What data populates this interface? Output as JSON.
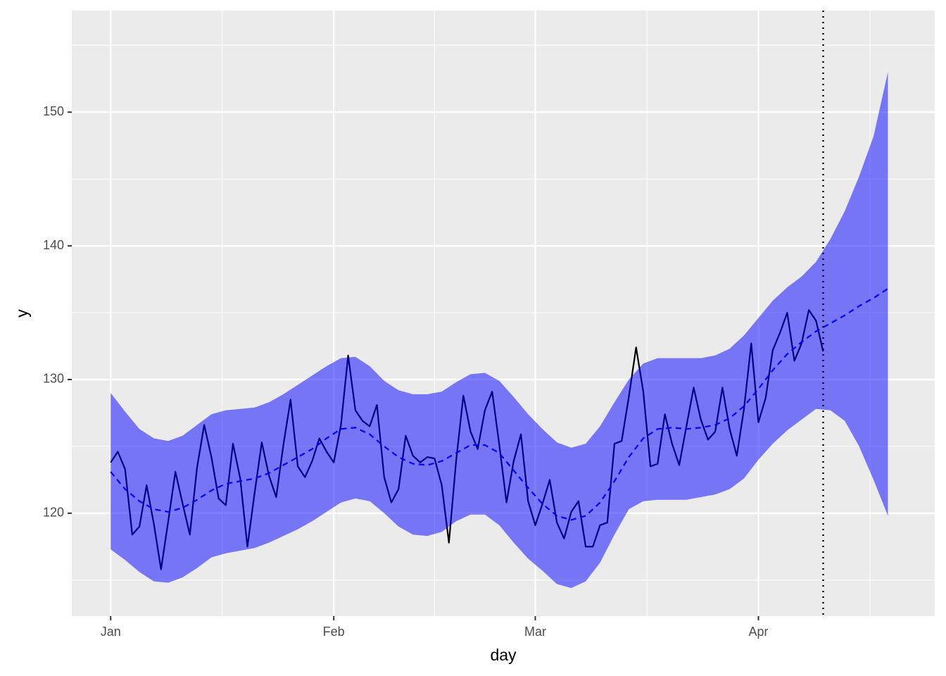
{
  "chart_data": {
    "type": "line",
    "x_label": "day",
    "y_label": "y",
    "xlim": [
      -5.4,
      114.5
    ],
    "ylim": [
      112.3,
      157.6
    ],
    "xticks": [
      {
        "value": 0,
        "label": "Jan"
      },
      {
        "value": 31,
        "label": "Feb"
      },
      {
        "value": 59,
        "label": "Mar"
      },
      {
        "value": 90,
        "label": "Apr"
      }
    ],
    "x_minor_ticks": [
      15.5,
      45,
      74.5,
      105.5
    ],
    "yticks": [
      120,
      130,
      140,
      150
    ],
    "y_minor_ticks": [
      115,
      125,
      135,
      145,
      155
    ],
    "grid": true,
    "x": [
      0,
      1,
      2,
      3,
      4,
      5,
      6,
      7,
      8,
      9,
      10,
      11,
      12,
      13,
      14,
      15,
      16,
      17,
      18,
      19,
      20,
      21,
      22,
      23,
      24,
      25,
      26,
      27,
      28,
      29,
      30,
      31,
      32,
      33,
      34,
      35,
      36,
      37,
      38,
      39,
      40,
      41,
      42,
      43,
      44,
      45,
      46,
      47,
      48,
      49,
      50,
      51,
      52,
      53,
      54,
      55,
      56,
      57,
      58,
      59,
      60,
      61,
      62,
      63,
      64,
      65,
      66,
      67,
      68,
      69,
      70,
      71,
      72,
      73,
      74,
      75,
      76,
      77,
      78,
      79,
      80,
      81,
      82,
      83,
      84,
      85,
      86,
      87,
      88,
      89,
      90,
      91,
      92,
      93,
      94,
      95,
      96,
      97,
      98,
      99
    ],
    "series": [
      {
        "color": "#000000",
        "values": [
          123.8,
          124.6,
          123.3,
          118.4,
          119.0,
          122.1,
          119.2,
          115.8,
          119.4,
          123.1,
          120.7,
          118.4,
          123.4,
          126.6,
          124.2,
          121.1,
          120.6,
          125.2,
          122.6,
          117.5,
          121.5,
          125.3,
          122.8,
          121.2,
          125.1,
          128.5,
          123.5,
          122.7,
          123.9,
          125.6,
          124.6,
          123.8,
          126.6,
          131.8,
          127.7,
          126.9,
          126.5,
          128.1,
          122.7,
          120.8,
          121.8,
          125.8,
          124.3,
          123.8,
          124.2,
          124.1,
          122.1,
          117.8,
          123.9,
          128.8,
          126.1,
          124.8,
          127.7,
          129.1,
          125.1,
          120.8,
          123.9,
          125.9,
          120.9,
          119.1,
          120.7,
          122.5,
          119.3,
          118.1,
          120.1,
          120.9,
          117.5,
          117.5,
          119.1,
          119.3,
          125.2,
          125.4,
          128.7,
          132.4,
          129.1,
          123.5,
          123.7,
          127.4,
          125.2,
          123.6,
          126.5,
          129.4,
          127.0,
          125.5,
          126.1,
          129.4,
          126.3,
          124.3,
          127.8,
          132.7,
          126.8,
          128.6,
          132.2,
          133.5,
          135.0,
          131.4,
          132.7,
          135.2,
          134.4,
          132.1
        ]
      }
    ],
    "band": {
      "color": "#0000ff",
      "opacity": 0.5,
      "x": [
        0,
        2,
        4,
        6,
        8,
        10,
        12,
        14,
        16,
        18,
        20,
        22,
        24,
        26,
        28,
        30,
        32,
        34,
        36,
        38,
        40,
        42,
        44,
        46,
        48,
        50,
        52,
        54,
        56,
        58,
        60,
        62,
        64,
        66,
        68,
        70,
        72,
        74,
        76,
        78,
        80,
        82,
        84,
        86,
        88,
        90,
        92,
        94,
        96,
        98,
        100,
        102,
        104,
        106,
        108
      ],
      "lower": [
        117.3,
        116.5,
        115.6,
        114.9,
        114.8,
        115.2,
        115.9,
        116.7,
        117.0,
        117.2,
        117.4,
        117.8,
        118.3,
        118.8,
        119.4,
        120.1,
        120.8,
        121.1,
        120.9,
        120.0,
        119.0,
        118.4,
        118.3,
        118.6,
        119.4,
        119.9,
        119.9,
        119.1,
        117.8,
        116.6,
        115.7,
        114.7,
        114.4,
        114.9,
        116.3,
        118.4,
        120.3,
        120.9,
        121.0,
        121.0,
        121.0,
        121.2,
        121.4,
        121.8,
        122.6,
        124.0,
        125.2,
        126.2,
        127.0,
        127.8,
        127.7,
        126.9,
        125.0,
        122.5,
        119.8
      ],
      "upper": [
        129.0,
        127.6,
        126.3,
        125.6,
        125.4,
        125.8,
        126.6,
        127.4,
        127.7,
        127.8,
        127.9,
        128.3,
        128.9,
        129.6,
        130.3,
        131.0,
        131.6,
        131.7,
        131.0,
        129.9,
        129.2,
        128.9,
        128.9,
        129.1,
        129.8,
        130.4,
        130.5,
        129.9,
        128.7,
        127.4,
        126.3,
        125.3,
        124.9,
        125.2,
        126.5,
        128.3,
        130.0,
        131.2,
        131.6,
        131.6,
        131.6,
        131.6,
        131.8,
        132.3,
        133.3,
        134.6,
        135.9,
        136.9,
        137.7,
        138.8,
        140.5,
        142.6,
        145.2,
        148.2,
        153.0
      ]
    },
    "fit": {
      "color": "#0000ff",
      "dashed": true,
      "x": [
        0,
        2,
        4,
        6,
        8,
        10,
        12,
        14,
        16,
        18,
        20,
        22,
        24,
        26,
        28,
        30,
        32,
        34,
        36,
        38,
        40,
        42,
        44,
        46,
        48,
        50,
        52,
        54,
        56,
        58,
        60,
        62,
        64,
        66,
        68,
        70,
        72,
        74,
        76,
        78,
        80,
        82,
        84,
        86,
        88,
        90,
        92,
        94,
        96,
        98,
        100,
        102,
        104,
        106,
        108
      ],
      "values": [
        123.1,
        121.8,
        120.9,
        120.3,
        120.1,
        120.4,
        121.0,
        121.7,
        122.2,
        122.4,
        122.6,
        123.0,
        123.6,
        124.2,
        124.8,
        125.6,
        126.3,
        126.4,
        125.9,
        125.0,
        124.2,
        123.7,
        123.6,
        123.9,
        124.5,
        125.1,
        125.1,
        124.5,
        123.2,
        121.9,
        120.7,
        119.8,
        119.5,
        119.8,
        120.8,
        122.4,
        124.2,
        125.6,
        126.3,
        126.4,
        126.3,
        126.4,
        126.6,
        127.1,
        128.0,
        129.3,
        130.7,
        131.9,
        132.8,
        133.6,
        134.2,
        134.8,
        135.5,
        136.1,
        136.8
      ]
    },
    "vline": {
      "x": 99,
      "color": "#000000"
    }
  }
}
